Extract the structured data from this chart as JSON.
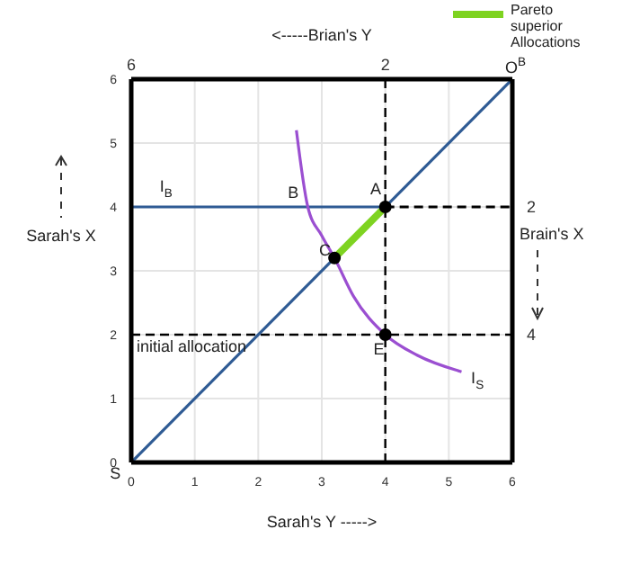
{
  "chart_data": {
    "type": "line",
    "xlabel": "Sarah's Y ----->",
    "ylabel": "Sarah's X",
    "x2label": "<-----Brian's Y",
    "y2label": "Brain's X",
    "xlim": [
      0,
      6
    ],
    "xticks": [
      0,
      1,
      2,
      3,
      4,
      5,
      6
    ],
    "ylim": [
      0,
      6
    ],
    "yticks": [
      0,
      1,
      2,
      3,
      4,
      5,
      6
    ],
    "x2lim": [
      6,
      0
    ],
    "x2ticks": [
      6,
      2
    ],
    "y2lim": [
      6,
      0
    ],
    "y2ticks": [
      2,
      4
    ],
    "grid": true,
    "legend": "top right",
    "marker": "none",
    "ref_lines": [
      {
        "axis": "x",
        "value": 4,
        "color": "#000000",
        "line_style": "dashed"
      },
      {
        "axis": "y",
        "value": 2,
        "label": "initial allocation",
        "color": "#000000",
        "line_style": "dashed"
      }
    ],
    "annotations": [
      "I$_{B}$",
      "B",
      "A",
      "C",
      "E",
      "I$_{S}$",
      "O$^{B}$",
      "S"
    ],
    "series": [
      {
        "color": "#2f5b94",
        "x": [
          0,
          6
        ],
        "values": [
          0,
          6
        ]
      },
      {
        "color": "#2f5b94",
        "x": [
          0,
          4
        ],
        "values": [
          4,
          4
        ]
      },
      {
        "color": "#000000",
        "line_style": "dashed",
        "x": [
          4,
          6
        ],
        "values": [
          4,
          4
        ]
      },
      {
        "color": "#9b4fd1",
        "x": [
          2.6,
          2.78,
          3.0,
          3.2,
          3.5,
          4,
          4.5,
          5.2
        ],
        "values": [
          5.2,
          4,
          3.55,
          3.2,
          2.6,
          2,
          1.68,
          1.42
        ]
      },
      {
        "name": "Pareto superior Allocations",
        "color": "#7ed321",
        "x": [
          3.2,
          4
        ],
        "values": [
          3.2,
          4
        ]
      },
      {
        "type": "scatter",
        "color": "#000000",
        "marker": "circle",
        "x": [
          4,
          3.2,
          4
        ],
        "values": [
          4,
          3.2,
          2
        ]
      }
    ]
  }
}
